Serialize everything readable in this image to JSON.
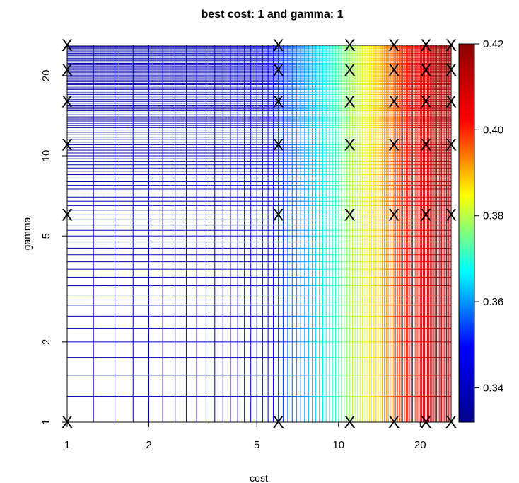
{
  "chart_data": {
    "type": "heatmap",
    "title": "best cost: 1  and gamma: 1",
    "xlabel": "cost",
    "ylabel": "gamma",
    "x_scale": "log",
    "y_scale": "log",
    "xlim": [
      1,
      26
    ],
    "ylim": [
      1,
      26
    ],
    "x_ticks": [
      1,
      2,
      5,
      10,
      20
    ],
    "x_tick_labels": [
      "1",
      "2",
      "5",
      "10",
      "20"
    ],
    "y_ticks": [
      1,
      2,
      5,
      10,
      20
    ],
    "y_tick_labels": [
      "1",
      "2",
      "5",
      "10",
      "20"
    ],
    "grid_points": {
      "cost": [
        1,
        6,
        11,
        16,
        21,
        26
      ],
      "gamma": [
        1,
        6,
        11,
        16,
        21,
        26
      ]
    },
    "marker": "X",
    "color_scale": {
      "min": 0.332,
      "max": 0.42,
      "ticks": [
        0.34,
        0.36,
        0.38,
        0.4,
        0.42
      ],
      "tick_labels": [
        "0.34",
        "0.36",
        "0.38",
        "0.40",
        "0.42"
      ],
      "colors": [
        "#00008b",
        "#0000ff",
        "#00ffff",
        "#ffff00",
        "#ff0000",
        "#8b0000"
      ]
    },
    "contour_value_range_by_cost": [
      {
        "cost": 1,
        "value": 0.337
      },
      {
        "cost": 5,
        "value": 0.341
      },
      {
        "cost": 6,
        "value": 0.352
      },
      {
        "cost": 11,
        "value": 0.378
      },
      {
        "cost": 16,
        "value": 0.396
      },
      {
        "cost": 21,
        "value": 0.41
      },
      {
        "cost": 26,
        "value": 0.419
      }
    ]
  }
}
